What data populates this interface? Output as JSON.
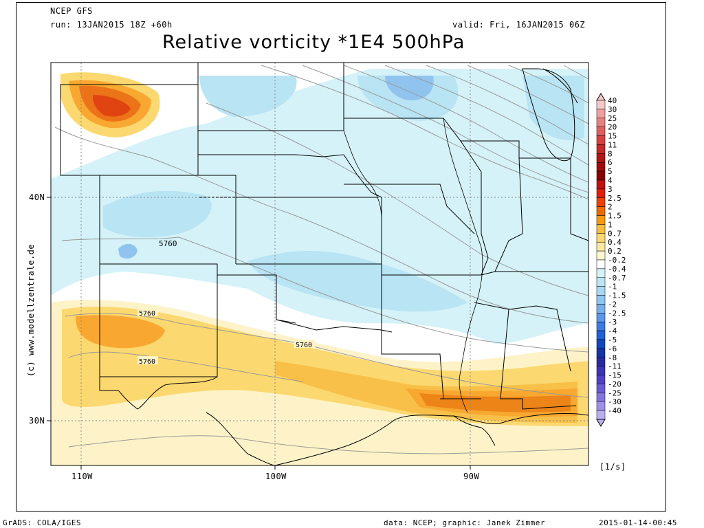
{
  "header": {
    "model": "NCEP GFS",
    "run": "run: 13JAN2015 18Z +60h",
    "valid": "valid: Fri, 16JAN2015 06Z",
    "title": "Relative vorticity *1E4 500hPa"
  },
  "side_credit": "(c) www.modellzentrale.de",
  "footer": {
    "left": "GrADS: COLA/IGES",
    "center": "data: NCEP; graphic: Janek Zimmer",
    "right": "2015-01-14-00:45"
  },
  "axes": {
    "lat_labels": [
      "40N",
      "30N"
    ],
    "lon_labels": [
      "110W",
      "100W",
      "90W"
    ]
  },
  "contours": {
    "value_label": "5760",
    "labels": [
      "5760",
      "5760",
      "5760",
      "5760"
    ]
  },
  "colorbar": {
    "unit": "[1/s]",
    "levels": [
      "40",
      "30",
      "25",
      "20",
      "15",
      "11",
      "8",
      "6",
      "5",
      "4",
      "3",
      "2.5",
      "2",
      "1.5",
      "1",
      "0.7",
      "0.4",
      "0.2",
      "-0.2",
      "-0.4",
      "-0.7",
      "-1",
      "-1.5",
      "-2",
      "-2.5",
      "-3",
      "-4",
      "-5",
      "-6",
      "-8",
      "-11",
      "-15",
      "-20",
      "-25",
      "-30",
      "-40"
    ],
    "colors": [
      "#f8c8c8",
      "#f0a0a0",
      "#e88080",
      "#e06060",
      "#d84040",
      "#c82828",
      "#b41414",
      "#a00a0a",
      "#8c0000",
      "#c01010",
      "#e02000",
      "#f04000",
      "#f06a00",
      "#f89a10",
      "#fcbc40",
      "#fcd870",
      "#fde8a0",
      "#fef6d0",
      "#ffffff",
      "#d4f2f8",
      "#bce6f6",
      "#a8d8f4",
      "#90c6f2",
      "#78b0ee",
      "#5c96ea",
      "#3c7ae4",
      "#2060d8",
      "#1046c0",
      "#1434a8",
      "#2a2aa0",
      "#3c34b8",
      "#5040c8",
      "#6a5ad6",
      "#8474e0",
      "#a090ea",
      "#bcb0f2"
    ]
  },
  "colors": {
    "pos_weak": "#fef3c8",
    "pos_mod": "#fcd870",
    "pos_strong": "#f8a830",
    "pos_peak": "#e85810",
    "neg_weak": "#d4f2f8",
    "neg_mod": "#b8e4f4",
    "neg_strong": "#90c4ee"
  }
}
